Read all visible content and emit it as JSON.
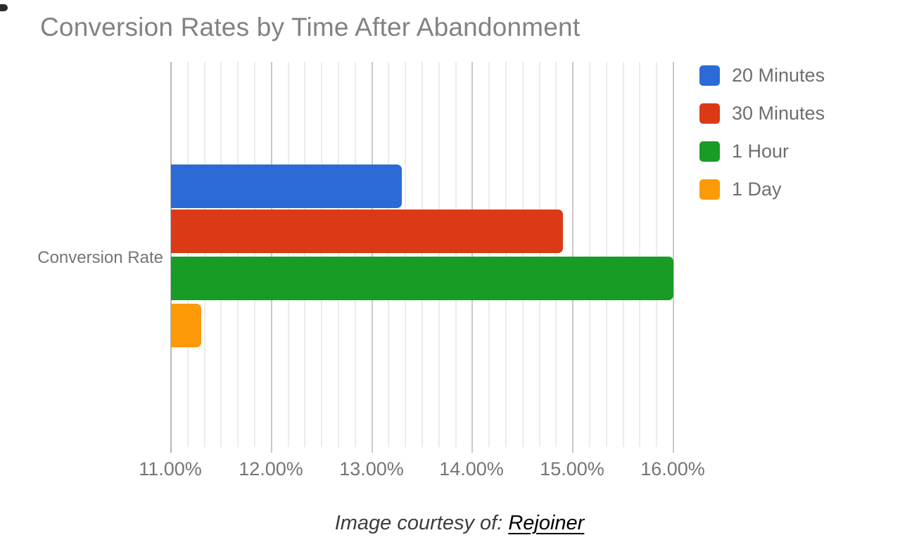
{
  "chart_data": {
    "type": "bar",
    "orientation": "horizontal",
    "title": "Conversion Rates by Time After Abandonment",
    "categories": [
      "Conversion Rate"
    ],
    "series": [
      {
        "name": "20 Minutes",
        "values": [
          13.3
        ],
        "color": "#2c6ad7"
      },
      {
        "name": "30 Minutes",
        "values": [
          14.9
        ],
        "color": "#dc3a17"
      },
      {
        "name": "1 Hour",
        "values": [
          16.0
        ],
        "color": "#189c25"
      },
      {
        "name": "1 Day",
        "values": [
          11.3
        ],
        "color": "#fc9a07"
      }
    ],
    "xlabel": "",
    "ylabel": "",
    "x_axis": {
      "min": 11,
      "max": 16,
      "tick_labels": [
        "11.00%",
        "12.00%",
        "13.00%",
        "14.00%",
        "15.00%",
        "16.00%"
      ],
      "minor_divisions_per_major": 6
    },
    "value_unit": "%",
    "grid": true,
    "legend_position": "right"
  },
  "legend": {
    "items": [
      {
        "label": "20 Minutes",
        "color": "#2c6ad7"
      },
      {
        "label": "30 Minutes",
        "color": "#dc3a17"
      },
      {
        "label": "1 Hour",
        "color": "#189c25"
      },
      {
        "label": "1 Day",
        "color": "#fc9a07"
      }
    ]
  },
  "caption": {
    "prefix": "Image courtesy of: ",
    "link_text": "Rejoiner"
  },
  "colors": {
    "title_text": "#828282",
    "axis_text": "#757575",
    "legend_text": "#6e6e6e",
    "gridline_major": "#c9c9c9",
    "gridline_minor": "#ececec"
  }
}
